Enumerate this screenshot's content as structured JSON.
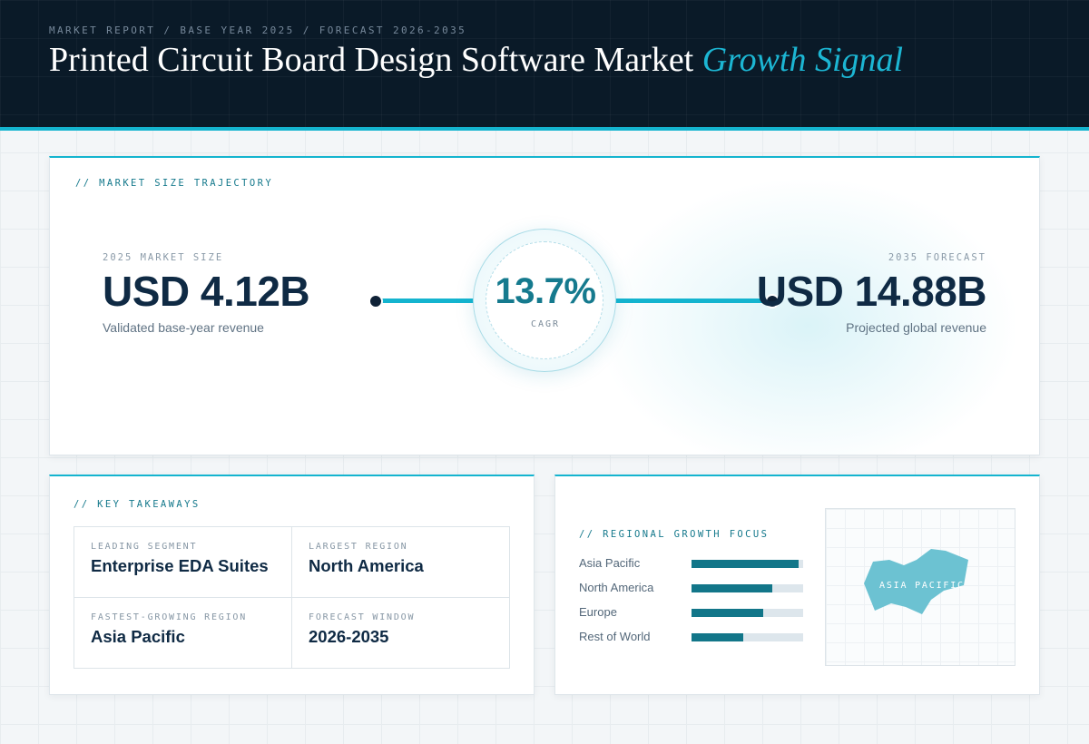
{
  "header": {
    "eyebrow": "MARKET REPORT / BASE YEAR 2025 / FORECAST 2026-2035",
    "title_main": "Printed Circuit Board Design Software Market",
    "title_accent": "Growth Signal"
  },
  "trajectory": {
    "section_label": "// MARKET SIZE TRAJECTORY",
    "start": {
      "label": "2025 MARKET SIZE",
      "value": "USD 4.12B",
      "caption": "Validated base-year revenue"
    },
    "end": {
      "label": "2035 FORECAST",
      "value": "USD 14.88B",
      "caption": "Projected global revenue"
    },
    "cagr": {
      "value": "13.7%",
      "label": "CAGR"
    }
  },
  "takeaways": {
    "section_label": "// KEY TAKEAWAYS",
    "items": [
      {
        "label": "LEADING SEGMENT",
        "value": "Enterprise EDA Suites"
      },
      {
        "label": "LARGEST REGION",
        "value": "North America"
      },
      {
        "label": "FASTEST-GROWING REGION",
        "value": "Asia Pacific"
      },
      {
        "label": "FORECAST WINDOW",
        "value": "2026-2035"
      }
    ]
  },
  "regional": {
    "section_label": "// REGIONAL GROWTH FOCUS",
    "bars": [
      {
        "name": "Asia Pacific",
        "level": 0.96
      },
      {
        "name": "North America",
        "level": 0.72
      },
      {
        "name": "Europe",
        "level": 0.64
      },
      {
        "name": "Rest of World",
        "level": 0.46
      }
    ],
    "map_label": "ASIA PACIFIC"
  },
  "colors": {
    "accent": "#14b4cf",
    "header_bg": "#0a1a28",
    "bar_fill": "#127689",
    "bar_track": "#dde6ec",
    "map_shape": "#6cc2d2"
  }
}
